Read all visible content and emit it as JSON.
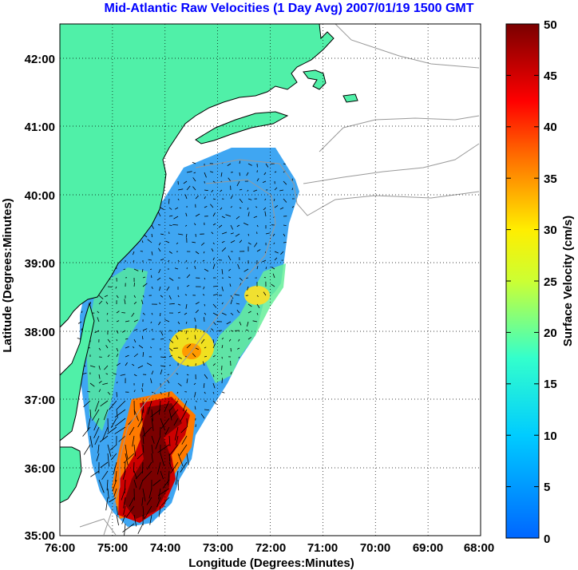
{
  "title": "Mid-Atlantic Raw Velocities (1 Day Avg) 2007/01/19 1500 GMT",
  "map": {
    "xlabel": "Longitude (Degrees:Minutes)",
    "ylabel": "Latitude (Degrees:Minutes)",
    "lon_range": [
      76,
      68
    ],
    "lat_range": [
      35,
      42.5
    ],
    "lon_ticks": [
      "76:00",
      "75:00",
      "74:00",
      "73:00",
      "72:00",
      "71:00",
      "70:00",
      "69:00",
      "68:00"
    ],
    "lat_ticks": [
      "42:00",
      "41:00",
      "40:00",
      "39:00",
      "38:00",
      "37:00",
      "36:00",
      "35:00"
    ],
    "grid": "dotted",
    "land_color": "#50f0a8",
    "coastline_color": "#000000",
    "bathymetry_color": "#999999",
    "vector_color": "#000000"
  },
  "colorbar": {
    "label": "Surface Velocity (cm/s)",
    "ticks": [
      "50",
      "45",
      "40",
      "35",
      "30",
      "25",
      "20",
      "15",
      "10",
      "5",
      "0"
    ],
    "range": [
      0,
      50
    ],
    "colormap": "jet"
  }
}
